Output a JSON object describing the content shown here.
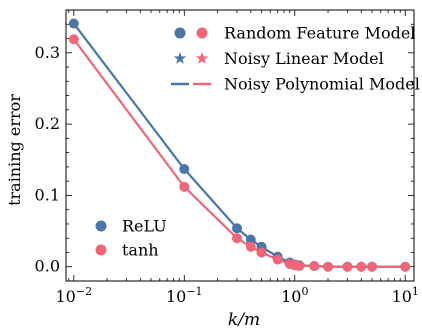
{
  "chart_data": {
    "type": "scatter",
    "xscale": "log",
    "xlabel": "k/m",
    "ylabel": "training error",
    "xlim": [
      0.0085,
      12
    ],
    "ylim": [
      -0.02,
      0.36
    ],
    "xticks": [
      {
        "value": 0.01,
        "base": "10",
        "exp": "−2"
      },
      {
        "value": 0.1,
        "base": "10",
        "exp": "−1"
      },
      {
        "value": 1,
        "base": "10",
        "exp": "0"
      },
      {
        "value": 10,
        "base": "10",
        "exp": "1"
      }
    ],
    "yticks": [
      {
        "value": 0.0,
        "label": "0.0"
      },
      {
        "value": 0.1,
        "label": "0.1"
      },
      {
        "value": 0.2,
        "label": "0.2"
      },
      {
        "value": 0.3,
        "label": "0.3"
      }
    ],
    "x": [
      0.01,
      0.1,
      0.3,
      0.4,
      0.5,
      0.7,
      0.9,
      1.0,
      1.1,
      1.5,
      2.0,
      3.0,
      4.0,
      5.0,
      10.0
    ],
    "series": [
      {
        "name": "ReLU",
        "color": "#4a76a8",
        "values": [
          0.341,
          0.137,
          0.054,
          0.038,
          0.028,
          0.014,
          0.006,
          0.003,
          0.002,
          0.001,
          0.0,
          0.0,
          0.0,
          0.0,
          0.0
        ]
      },
      {
        "name": "tanh",
        "color": "#ee6677",
        "values": [
          0.319,
          0.112,
          0.04,
          0.028,
          0.02,
          0.01,
          0.004,
          0.002,
          0.001,
          0.001,
          0.0,
          0.0,
          0.0,
          0.0,
          0.0
        ]
      }
    ],
    "legend_models": {
      "position": "top-right",
      "entries": [
        {
          "label": "Random Feature Model",
          "marker": "circle"
        },
        {
          "label": "Noisy Linear Model",
          "marker": "star"
        },
        {
          "label": "Noisy Polynomial Model",
          "marker": "line"
        }
      ]
    },
    "legend_activations": {
      "position": "bottom-left",
      "entries": [
        "ReLU",
        "tanh"
      ]
    }
  }
}
